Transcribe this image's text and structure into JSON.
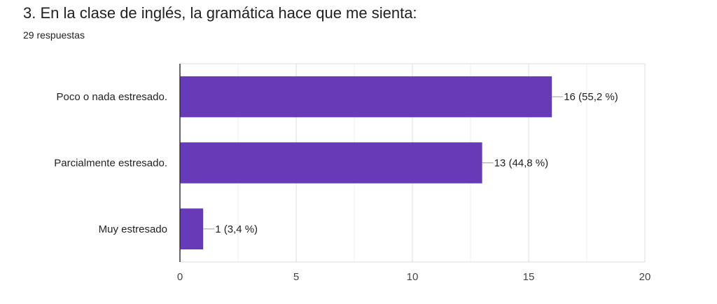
{
  "header": {
    "title": "3. En la clase de inglés, la gramática hace que me sienta:",
    "subtitle": "29 respuestas"
  },
  "chart_data": {
    "type": "bar",
    "orientation": "horizontal",
    "categories": [
      "Poco o nada estresado.",
      "Parcialmente estresado.",
      "Muy estresado"
    ],
    "values": [
      16,
      13,
      1
    ],
    "data_labels": [
      "16 (55,2 %)",
      "13 (44,8 %)",
      "1 (3,4 %)"
    ],
    "xlim": [
      0,
      20
    ],
    "xticks": [
      0,
      5,
      10,
      15,
      20
    ],
    "grid": true,
    "bar_color": "#673ab7"
  }
}
